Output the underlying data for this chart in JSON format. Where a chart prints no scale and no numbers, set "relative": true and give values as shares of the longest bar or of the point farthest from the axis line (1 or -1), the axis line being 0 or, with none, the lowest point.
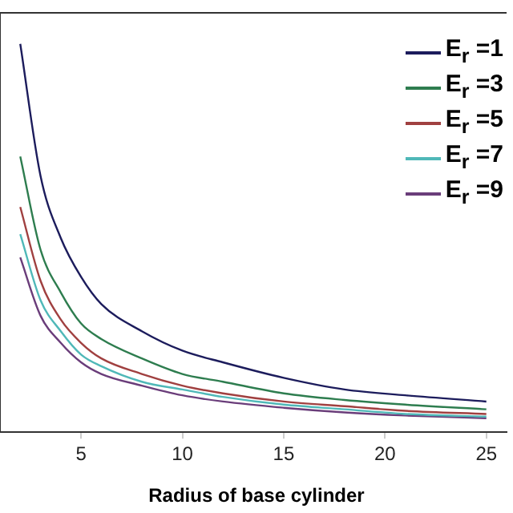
{
  "chart_data": {
    "type": "line",
    "xlabel": "Radius of base cylinder",
    "relative": true,
    "xlim": [
      1,
      26
    ],
    "xticks": [
      5,
      10,
      15,
      20,
      25
    ],
    "grid": false,
    "legend": "top right",
    "marker": "none",
    "line_style": "solid",
    "tick_labels": "x",
    "x": [
      2,
      3,
      4,
      5,
      6,
      8,
      10,
      12,
      15,
      18,
      21,
      25
    ],
    "series": [
      {
        "name": "E$_{r}$ =1",
        "color": "#1c1c5c",
        "values": [
          1,
          0.66,
          0.5,
          0.4,
          0.33,
          0.26,
          0.21,
          0.18,
          0.14,
          0.11,
          0.095,
          0.079
        ]
      },
      {
        "name": "E$_{r}$ =3",
        "color": "#2e7d4f",
        "values": [
          0.71,
          0.47,
          0.36,
          0.28,
          0.24,
          0.19,
          0.15,
          0.13,
          0.1,
          0.083,
          0.071,
          0.059
        ]
      },
      {
        "name": "E$_{r}$ =5",
        "color": "#a04040",
        "values": [
          0.58,
          0.39,
          0.29,
          0.23,
          0.19,
          0.15,
          0.12,
          0.1,
          0.079,
          0.067,
          0.055,
          0.047
        ]
      },
      {
        "name": "E$_{r}$ =7",
        "color": "#4fb8b8",
        "values": [
          0.51,
          0.34,
          0.26,
          0.2,
          0.17,
          0.13,
          0.11,
          0.091,
          0.071,
          0.059,
          0.047,
          0.04
        ]
      },
      {
        "name": "E$_{r}$ =9",
        "color": "#6a3d7a",
        "values": [
          0.45,
          0.3,
          0.23,
          0.18,
          0.15,
          0.12,
          0.095,
          0.079,
          0.063,
          0.051,
          0.043,
          0.036
        ]
      }
    ]
  }
}
